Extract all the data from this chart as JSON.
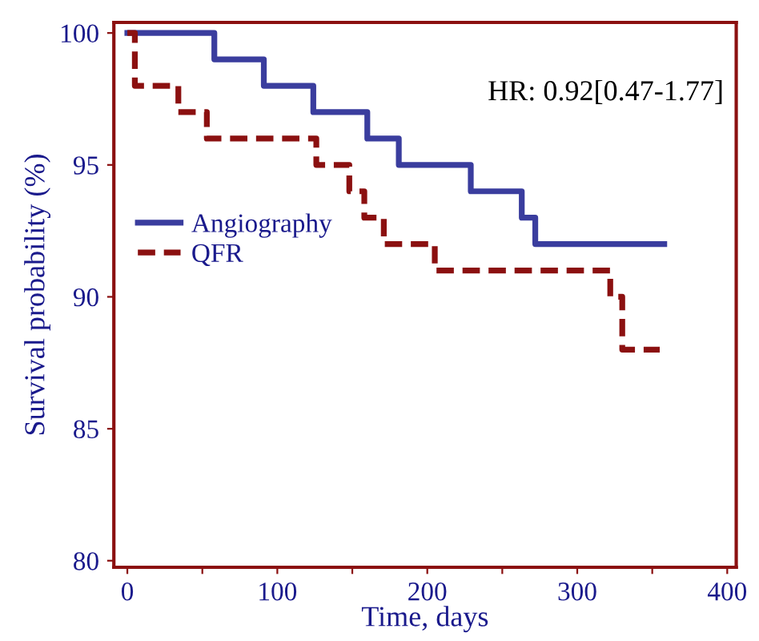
{
  "chart_data": {
    "type": "step",
    "xlabel": "Time, days",
    "ylabel": "Survival probability (%)",
    "annotations": [
      "HR: 0.92[0.47-1.77]"
    ],
    "series": [
      {
        "name": "Angiography",
        "color": "#3a3d9e",
        "line_style": "solid",
        "x": [
          0,
          58,
          91,
          124,
          160,
          181,
          229,
          263,
          272,
          358
        ],
        "values": [
          100,
          99,
          98,
          97,
          96,
          95,
          94,
          93,
          92,
          92
        ]
      },
      {
        "name": "QFR",
        "color": "#8b1010",
        "line_style": "dashed",
        "x": [
          0,
          5,
          34,
          53,
          126,
          148,
          158,
          171,
          205,
          322,
          330,
          355
        ],
        "values": [
          100,
          98,
          97,
          96,
          95,
          94,
          93,
          92,
          91,
          90,
          88,
          88
        ]
      }
    ],
    "xlim": [
      -9,
      406
    ],
    "ylim": [
      79.75,
      100.4
    ],
    "xticks": [
      0,
      {
        "value": 50,
        "label": null
      },
      100,
      {
        "value": 150,
        "label": null
      },
      200,
      {
        "value": 250,
        "label": null
      },
      300,
      {
        "value": 350,
        "label": null
      },
      400
    ],
    "yticks": [
      80,
      85,
      90,
      95,
      100
    ],
    "grid": false,
    "legend": "center left",
    "marker": "none"
  }
}
